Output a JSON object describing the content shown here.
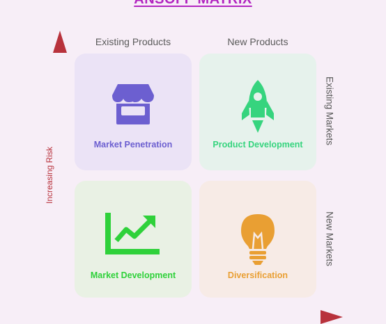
{
  "title": "ANSOFF MATRIX",
  "columns": [
    "Existing Products",
    "New Products"
  ],
  "rows": [
    "Existing Markets",
    "New Markets"
  ],
  "y_axis_label": "Increasing Risk",
  "quadrants": [
    {
      "label": "Market Penetration",
      "icon": "storefront-icon",
      "color": "#6c5fd0",
      "bg": "#ebe3f6"
    },
    {
      "label": "Product Development",
      "icon": "rocket-icon",
      "color": "#36d47e",
      "bg": "#e6f2ec"
    },
    {
      "label": "Market Development",
      "icon": "trending-chart-icon",
      "color": "#2fd13a",
      "bg": "#e9f1e4"
    },
    {
      "label": "Diversification",
      "icon": "lightbulb-icon",
      "color": "#e99f33",
      "bg": "#f7ebe6"
    }
  ],
  "colors": {
    "title": "#b225c0",
    "axis_start": "#b8323c",
    "axis_end": "#7a6fe0"
  }
}
